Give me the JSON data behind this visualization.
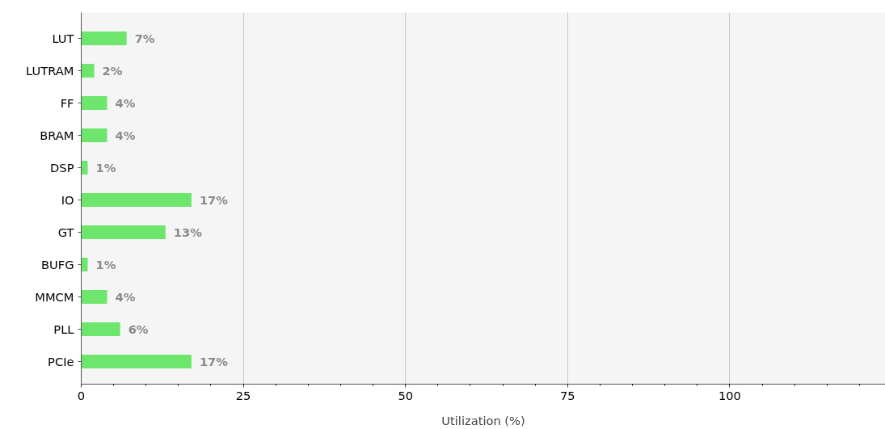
{
  "chart_data": {
    "type": "bar",
    "orientation": "horizontal",
    "xlabel": "Utilization (%)",
    "categories": [
      "LUT",
      "LUTRAM",
      "FF",
      "BRAM",
      "DSP",
      "IO",
      "GT",
      "BUFG",
      "MMCM",
      "PLL",
      "PCIe"
    ],
    "values": [
      7,
      2,
      4,
      4,
      1,
      17,
      13,
      1,
      4,
      6,
      17
    ],
    "value_labels": [
      "7%",
      "2%",
      "4%",
      "4%",
      "1%",
      "17%",
      "13%",
      "1%",
      "4%",
      "6%",
      "17%"
    ],
    "color": "#6ee66e",
    "xlim": [
      0,
      124
    ],
    "xticks": [
      0,
      25,
      50,
      75,
      100
    ],
    "grid": "x"
  }
}
